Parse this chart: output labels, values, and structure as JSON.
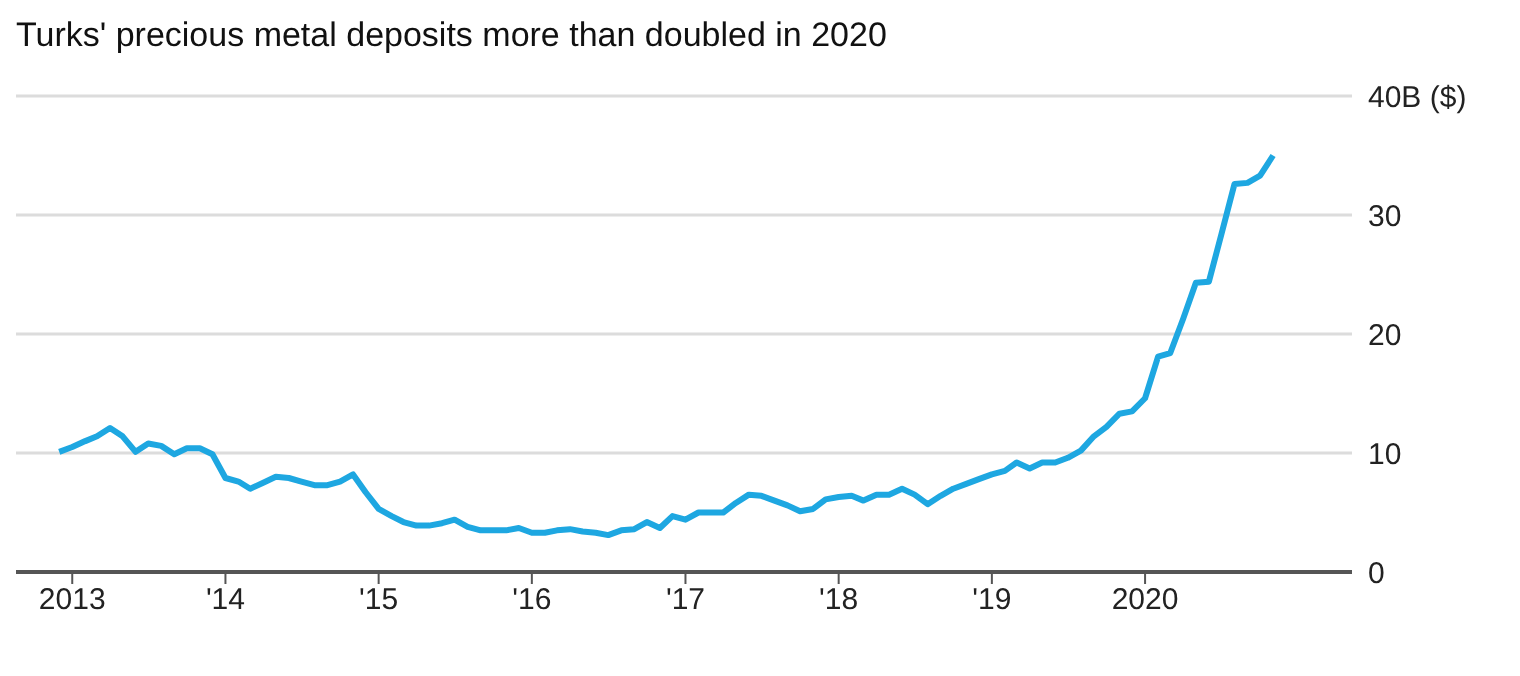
{
  "chart_data": {
    "type": "line",
    "title": "Turks' precious metal deposits more than doubled in 2020",
    "x": [
      "2012-12",
      "2013-01",
      "2013-02",
      "2013-03",
      "2013-04",
      "2013-05",
      "2013-06",
      "2013-07",
      "2013-08",
      "2013-09",
      "2013-10",
      "2013-11",
      "2013-12",
      "2014-01",
      "2014-02",
      "2014-03",
      "2014-04",
      "2014-05",
      "2014-06",
      "2014-07",
      "2014-08",
      "2014-09",
      "2014-10",
      "2014-11",
      "2014-12",
      "2015-01",
      "2015-02",
      "2015-03",
      "2015-04",
      "2015-05",
      "2015-06",
      "2015-07",
      "2015-08",
      "2015-09",
      "2015-10",
      "2015-11",
      "2015-12",
      "2016-01",
      "2016-02",
      "2016-03",
      "2016-04",
      "2016-05",
      "2016-06",
      "2016-07",
      "2016-08",
      "2016-09",
      "2016-10",
      "2016-11",
      "2016-12",
      "2017-01",
      "2017-02",
      "2017-03",
      "2017-04",
      "2017-05",
      "2017-06",
      "2017-07",
      "2017-08",
      "2017-09",
      "2017-10",
      "2017-11",
      "2017-12",
      "2018-01",
      "2018-02",
      "2018-03",
      "2018-04",
      "2018-05",
      "2018-06",
      "2018-07",
      "2018-08",
      "2018-09",
      "2018-10",
      "2018-11",
      "2018-12",
      "2019-01",
      "2019-02",
      "2019-03",
      "2019-04",
      "2019-05",
      "2019-06",
      "2019-07",
      "2019-08",
      "2019-09",
      "2019-10",
      "2019-11",
      "2019-12",
      "2020-01",
      "2020-02",
      "2020-03",
      "2020-04",
      "2020-05",
      "2020-06",
      "2020-07",
      "2020-08",
      "2020-09",
      "2020-10",
      "2020-11"
    ],
    "series": [
      {
        "color": "#1ea7e1",
        "values": [
          10.1,
          10.5,
          11.0,
          11.4,
          12.1,
          11.4,
          10.1,
          10.8,
          10.6,
          9.9,
          10.4,
          10.4,
          9.9,
          7.9,
          7.6,
          7.0,
          7.5,
          8.0,
          7.9,
          7.6,
          7.3,
          7.3,
          7.6,
          8.2,
          6.7,
          5.3,
          4.7,
          4.2,
          3.9,
          3.9,
          4.1,
          4.4,
          3.8,
          3.5,
          3.5,
          3.5,
          3.7,
          3.3,
          3.3,
          3.5,
          3.6,
          3.4,
          3.3,
          3.1,
          3.5,
          3.6,
          4.2,
          3.7,
          4.7,
          4.4,
          5.0,
          5.0,
          5.0,
          5.8,
          6.5,
          6.4,
          6.0,
          5.6,
          5.1,
          5.3,
          6.1,
          6.3,
          6.4,
          6.0,
          6.5,
          6.5,
          7.0,
          6.5,
          5.7,
          6.4,
          7.0,
          7.4,
          7.8,
          8.2,
          8.5,
          9.2,
          8.7,
          9.2,
          9.2,
          9.6,
          10.2,
          11.4,
          12.2,
          13.3,
          13.5,
          14.6,
          18.1,
          18.4,
          21.3,
          24.3,
          24.4,
          28.4,
          32.6,
          32.7,
          33.3,
          35.0
        ]
      }
    ],
    "xlim": [
      "2012-08-20",
      "2021-05-08"
    ],
    "xticks": [
      "2013",
      {
        "value": "2014",
        "label": "'14"
      },
      {
        "value": "2015",
        "label": "'15"
      },
      {
        "value": "2016",
        "label": "'16"
      },
      {
        "value": "2017",
        "label": "'17"
      },
      {
        "value": "2018",
        "label": "'18"
      },
      {
        "value": "2019",
        "label": "'19"
      },
      "2020"
    ],
    "ylim": [
      0,
      40
    ],
    "yticks": [
      0,
      10,
      20,
      30,
      {
        "value": 40,
        "label": "40B ($)"
      }
    ],
    "grid": "y",
    "legend": false,
    "marker": "none",
    "line_style": "solid"
  }
}
